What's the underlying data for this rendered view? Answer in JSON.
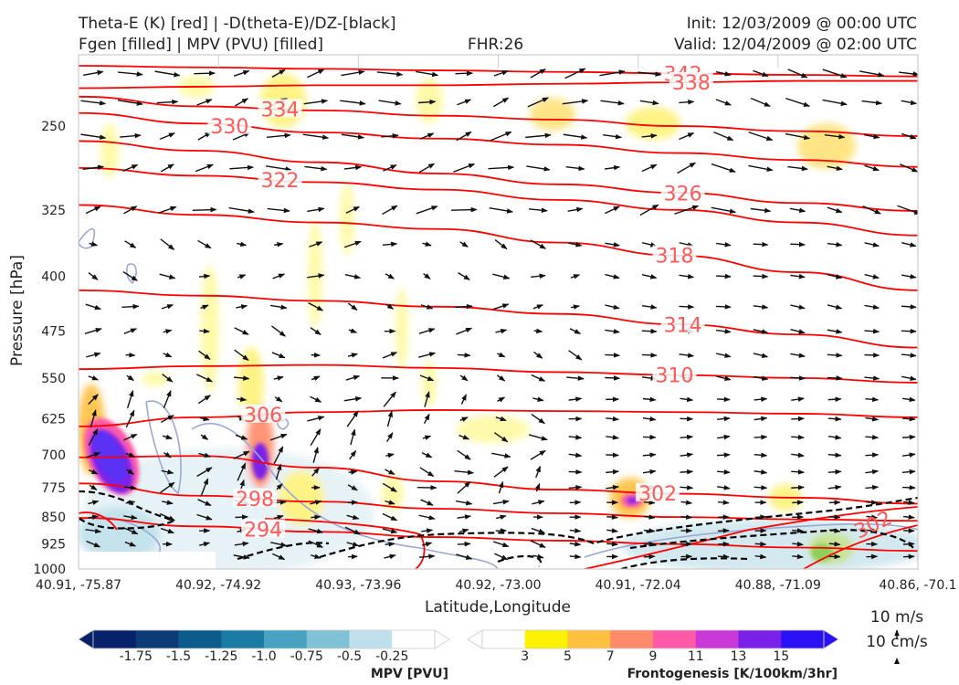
{
  "header": {
    "title_line1": "Theta-E (K) [red] | -D(theta-E)/DZ-[black]",
    "title_line2": "Fgen [filled] | MPV (PVU) [filled]",
    "fhr": "FHR:26",
    "init": "Init: 12/03/2009 @ 00:00 UTC",
    "valid": "Valid: 12/04/2009 @ 02:00 UTC"
  },
  "colors": {
    "theta_e": "#ff0000",
    "theta_e_label": "#ff5a5a",
    "dthetae_dz": "#000000",
    "vector": "#111111",
    "frame": "#cccccc"
  },
  "chart_data": {
    "type": "cross-section",
    "xlabel": "Latitude,Longitude",
    "ylabel": "Pressure [hPa]",
    "ylim": [
      1000,
      200
    ],
    "y_scale": "log-pressure",
    "xticks": [
      "40.91, -75.87",
      "40.92, -74.92",
      "40.93, -73.96",
      "40.92, -73.00",
      "40.91, -72.04",
      "40.88, -71.09",
      "40.86, -70.1"
    ],
    "yticks": [
      250,
      325,
      400,
      475,
      550,
      625,
      700,
      775,
      850,
      925,
      1000
    ],
    "theta_e_contours": [
      {
        "value": 342,
        "label": "342",
        "label_x": 0.72,
        "pressures": [
          207,
          208,
          209,
          210,
          211,
          212,
          213,
          214
        ]
      },
      {
        "value": 338,
        "label": "338",
        "label_x": 0.73,
        "pressures": [
          222,
          221,
          220,
          220,
          219,
          218,
          217,
          217
        ]
      },
      {
        "value": 334,
        "label": "334",
        "label_x": 0.24,
        "pressures": [
          228,
          235,
          238,
          242,
          245,
          250,
          254,
          258
        ]
      },
      {
        "value": 330,
        "label": "330",
        "label_x": 0.18,
        "pressures": [
          240,
          248,
          255,
          260,
          265,
          272,
          278,
          284
        ]
      },
      {
        "value": 326,
        "label": "326",
        "label_x": 0.72,
        "pressures": [
          262,
          270,
          280,
          290,
          300,
          308,
          318,
          326
        ]
      },
      {
        "value": 322,
        "label": "322",
        "label_x": 0.24,
        "pressures": [
          285,
          292,
          298,
          305,
          315,
          325,
          338,
          352
        ]
      },
      {
        "value": 318,
        "label": "318",
        "label_x": 0.71,
        "pressures": [
          320,
          330,
          338,
          345,
          360,
          375,
          395,
          418
        ]
      },
      {
        "value": 314,
        "label": "314",
        "label_x": 0.72,
        "pressures": [
          418,
          425,
          432,
          440,
          450,
          465,
          480,
          500
        ]
      },
      {
        "value": 310,
        "label": "310",
        "label_x": 0.71,
        "pressures": [
          535,
          530,
          528,
          533,
          540,
          545,
          550,
          558
        ]
      },
      {
        "value": 306,
        "label": "306",
        "label_x": 0.22,
        "pressures": [
          640,
          622,
          612,
          608,
          610,
          612,
          615,
          622
        ]
      },
      {
        "value": 302,
        "label": "302",
        "label_x": 0.69,
        "pressures": [
          705,
          702,
          728,
          760,
          780,
          790,
          800,
          815
        ]
      },
      {
        "value": 298,
        "label": "298",
        "label_x": 0.21,
        "pressures": [
          765,
          795,
          810,
          828,
          840,
          850,
          856,
          860
        ]
      },
      {
        "value": 294,
        "label": "294",
        "label_x": 0.22,
        "pressures": [
          852,
          875,
          890,
          905,
          915,
          925,
          935,
          945
        ]
      }
    ],
    "mpv_colorbar": {
      "label": "MPV [PVU]",
      "ticks": [
        "-1.75",
        "-1.5",
        "-1.25",
        "-1.0",
        "-0.75",
        "-0.5",
        "-0.25"
      ],
      "colors": [
        "#08216b",
        "#0b3c78",
        "#0d5a8c",
        "#1a7ba3",
        "#48a2c2",
        "#80c1d6",
        "#bfe0ea",
        "#ffffff"
      ]
    },
    "fgen_colorbar": {
      "label": "Frontogenesis [K/100km/3hr]",
      "ticks": [
        "3",
        "5",
        "7",
        "9",
        "11",
        "13",
        "15"
      ],
      "colors": [
        "#ffffff",
        "#fff200",
        "#ffc040",
        "#ff8a6a",
        "#ff5aa8",
        "#c839d8",
        "#7a20e8",
        "#2a10f5"
      ]
    },
    "vector_key": {
      "horizontal": "10 m/s",
      "vertical": "10 cm/s"
    }
  }
}
